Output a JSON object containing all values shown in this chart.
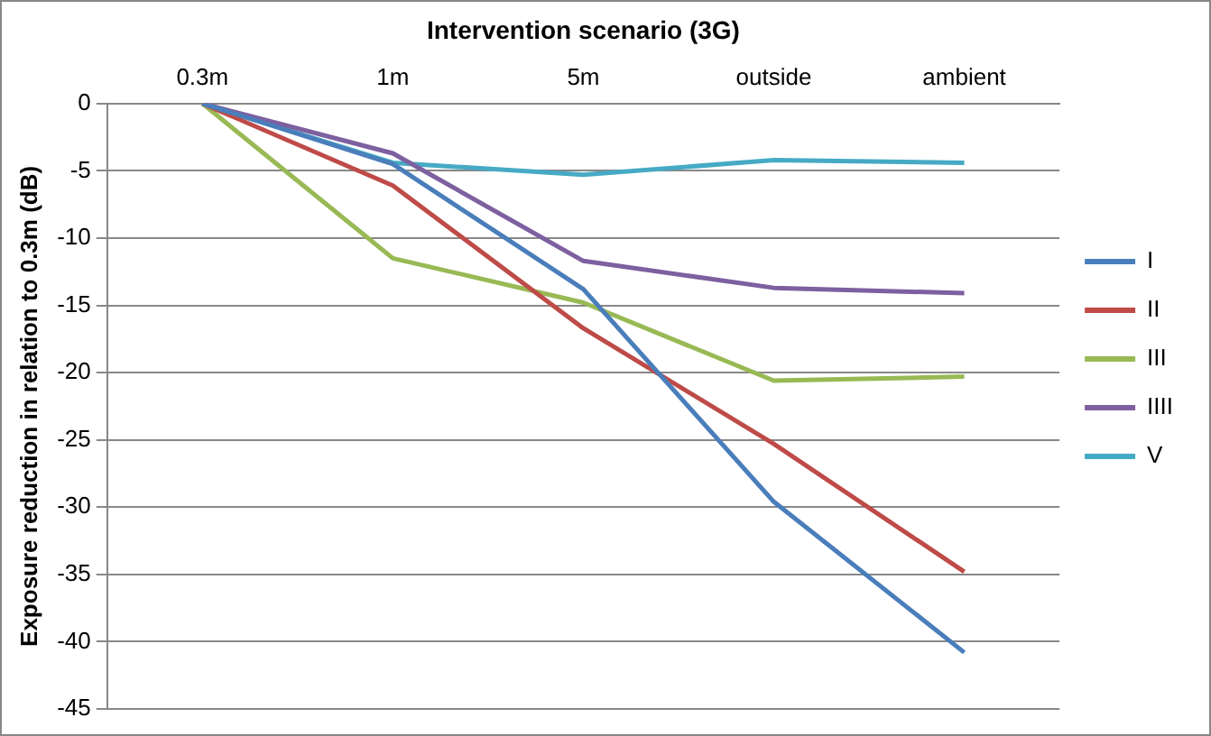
{
  "chart_data": {
    "type": "line",
    "xlabel": "Intervention scenario (3G)",
    "ylabel": "Exposure reduction in relation to 0.3m (dB)",
    "categories": [
      "0.3m",
      "1m",
      "5m",
      "outside",
      "ambient"
    ],
    "series": [
      {
        "name": "I",
        "color": "#4a7ebb",
        "values": [
          0,
          -4.5,
          -13.8,
          -29.6,
          -40.8
        ]
      },
      {
        "name": "II",
        "color": "#be4b48",
        "values": [
          0,
          -6.1,
          -16.7,
          -25.3,
          -34.8
        ]
      },
      {
        "name": "III",
        "color": "#98b954",
        "values": [
          0,
          -11.5,
          -14.8,
          -20.6,
          -20.3
        ]
      },
      {
        "name": "IIII",
        "color": "#7d60a0",
        "values": [
          0,
          -3.7,
          -11.7,
          -13.7,
          -14.1
        ]
      },
      {
        "name": "V",
        "color": "#46aac5",
        "values": [
          0,
          -4.4,
          -5.3,
          -4.2,
          -4.4
        ]
      }
    ],
    "ylim": [
      -45,
      0
    ],
    "yticks": [
      -45,
      -40,
      -35,
      -30,
      -25,
      -20,
      -15,
      -10,
      -5,
      0
    ],
    "grid": "y",
    "legend": "right",
    "marker": "none",
    "line_style": "solid"
  }
}
